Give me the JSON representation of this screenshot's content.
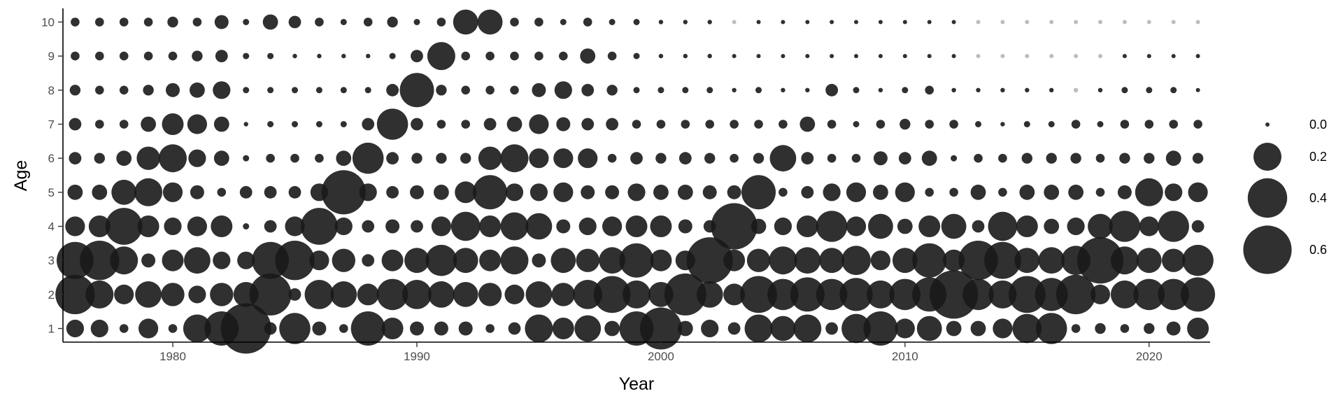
{
  "chart_data": {
    "type": "scatter",
    "subtype": "bubble",
    "title": "",
    "xlabel": "Year",
    "ylabel": "Age",
    "xlim": [
      1975.5,
      2022.5
    ],
    "ylim": [
      0.6,
      10.4
    ],
    "x_ticks": [
      "1980",
      "1990",
      "2000",
      "2010",
      "2020"
    ],
    "y_ticks": [
      "1",
      "2",
      "3",
      "4",
      "5",
      "6",
      "7",
      "8",
      "9",
      "10"
    ],
    "years": [
      1976,
      1977,
      1978,
      1979,
      1980,
      1981,
      1982,
      1983,
      1984,
      1985,
      1986,
      1987,
      1988,
      1989,
      1990,
      1991,
      1992,
      1993,
      1994,
      1995,
      1996,
      1997,
      1998,
      1999,
      2000,
      2001,
      2002,
      2003,
      2004,
      2005,
      2006,
      2007,
      2008,
      2009,
      2010,
      2011,
      2012,
      2013,
      2014,
      2015,
      2016,
      2017,
      2018,
      2019,
      2020,
      2021,
      2022
    ],
    "ages": [
      1,
      2,
      3,
      4,
      5,
      6,
      7,
      8,
      9,
      10
    ],
    "values_by_age": {
      "1": [
        0.08,
        0.08,
        0.02,
        0.1,
        0.02,
        0.2,
        0.3,
        0.65,
        0.04,
        0.25,
        0.05,
        0.02,
        0.3,
        0.12,
        0.05,
        0.05,
        0.05,
        0.02,
        0.04,
        0.2,
        0.12,
        0.18,
        0.06,
        0.3,
        0.45,
        0.06,
        0.08,
        0.04,
        0.2,
        0.16,
        0.2,
        0.04,
        0.22,
        0.3,
        0.1,
        0.16,
        0.06,
        0.06,
        0.1,
        0.22,
        0.25,
        0.02,
        0.03,
        0.02,
        0.03,
        0.05,
        0.12
      ],
      "2": [
        0.4,
        0.2,
        0.1,
        0.18,
        0.14,
        0.08,
        0.14,
        0.16,
        0.45,
        0.04,
        0.22,
        0.18,
        0.12,
        0.25,
        0.22,
        0.18,
        0.16,
        0.14,
        0.1,
        0.18,
        0.14,
        0.22,
        0.35,
        0.2,
        0.16,
        0.45,
        0.18,
        0.12,
        0.35,
        0.25,
        0.3,
        0.25,
        0.28,
        0.2,
        0.25,
        0.3,
        0.6,
        0.25,
        0.2,
        0.35,
        0.28,
        0.4,
        0.1,
        0.2,
        0.25,
        0.25,
        0.3
      ],
      "3": [
        0.35,
        0.4,
        0.2,
        0.05,
        0.12,
        0.18,
        0.08,
        0.08,
        0.35,
        0.4,
        0.1,
        0.14,
        0.04,
        0.12,
        0.16,
        0.25,
        0.16,
        0.12,
        0.2,
        0.05,
        0.16,
        0.14,
        0.18,
        0.3,
        0.12,
        0.1,
        0.55,
        0.12,
        0.14,
        0.2,
        0.18,
        0.16,
        0.22,
        0.1,
        0.16,
        0.3,
        0.12,
        0.4,
        0.35,
        0.16,
        0.18,
        0.22,
        0.55,
        0.2,
        0.16,
        0.14,
        0.25
      ],
      "4": [
        0.1,
        0.12,
        0.35,
        0.12,
        0.08,
        0.1,
        0.12,
        0.01,
        0.04,
        0.1,
        0.35,
        0.08,
        0.04,
        0.05,
        0.04,
        0.1,
        0.22,
        0.12,
        0.2,
        0.18,
        0.05,
        0.08,
        0.1,
        0.12,
        0.12,
        0.05,
        0.04,
        0.55,
        0.06,
        0.08,
        0.12,
        0.25,
        0.1,
        0.16,
        0.06,
        0.12,
        0.16,
        0.04,
        0.22,
        0.12,
        0.06,
        0.08,
        0.16,
        0.25,
        0.1,
        0.25,
        0.04
      ],
      "5": [
        0.06,
        0.06,
        0.16,
        0.2,
        0.1,
        0.05,
        0.02,
        0.04,
        0.04,
        0.04,
        0.08,
        0.5,
        0.08,
        0.04,
        0.05,
        0.06,
        0.12,
        0.3,
        0.08,
        0.08,
        0.1,
        0.05,
        0.05,
        0.08,
        0.06,
        0.06,
        0.05,
        0.05,
        0.3,
        0.02,
        0.04,
        0.08,
        0.1,
        0.06,
        0.1,
        0.02,
        0.02,
        0.06,
        0.02,
        0.06,
        0.06,
        0.06,
        0.02,
        0.05,
        0.2,
        0.08,
        0.1
      ],
      "6": [
        0.04,
        0.03,
        0.06,
        0.14,
        0.2,
        0.08,
        0.06,
        0.01,
        0.02,
        0.02,
        0.02,
        0.06,
        0.25,
        0.04,
        0.03,
        0.03,
        0.03,
        0.14,
        0.2,
        0.1,
        0.1,
        0.1,
        0.02,
        0.04,
        0.03,
        0.04,
        0.03,
        0.02,
        0.03,
        0.18,
        0.04,
        0.02,
        0.02,
        0.05,
        0.04,
        0.06,
        0.01,
        0.02,
        0.02,
        0.03,
        0.03,
        0.03,
        0.02,
        0.03,
        0.03,
        0.06,
        0.03
      ],
      "7": [
        0.04,
        0.02,
        0.02,
        0.06,
        0.12,
        0.1,
        0.06,
        0.005,
        0.01,
        0.01,
        0.01,
        0.01,
        0.04,
        0.25,
        0.04,
        0.02,
        0.02,
        0.04,
        0.06,
        0.1,
        0.05,
        0.04,
        0.04,
        0.02,
        0.02,
        0.02,
        0.02,
        0.02,
        0.02,
        0.02,
        0.06,
        0.02,
        0.01,
        0.02,
        0.03,
        0.02,
        0.02,
        0.01,
        0.005,
        0.01,
        0.01,
        0.02,
        0.01,
        0.02,
        0.02,
        0.02,
        0.02
      ],
      "8": [
        0.03,
        0.02,
        0.02,
        0.03,
        0.05,
        0.06,
        0.08,
        0.01,
        0.01,
        0.01,
        0.01,
        0.01,
        0.01,
        0.04,
        0.3,
        0.03,
        0.02,
        0.02,
        0.02,
        0.05,
        0.08,
        0.04,
        0.03,
        0.01,
        0.01,
        0.01,
        0.01,
        0.005,
        0.01,
        0.005,
        0.005,
        0.04,
        0.01,
        0.005,
        0.01,
        0.02,
        0.005,
        0.005,
        0.005,
        0.005,
        0.005,
        0.005,
        0.005,
        0.01,
        0.01,
        0.01,
        0.003
      ],
      "9": [
        0.02,
        0.02,
        0.02,
        0.02,
        0.02,
        0.03,
        0.04,
        0.01,
        0.01,
        0.005,
        0.005,
        0.005,
        0.005,
        0.01,
        0.04,
        0.2,
        0.02,
        0.02,
        0.02,
        0.02,
        0.02,
        0.06,
        0.02,
        0.01,
        0.005,
        0.005,
        0.005,
        0.003,
        0.003,
        0.003,
        0.003,
        0.003,
        0.003,
        0.003,
        0.003,
        0.003,
        0.003,
        0.002,
        0.002,
        0.002,
        0.002,
        0.002,
        0.002,
        0.003,
        0.003,
        0.003,
        0.003
      ],
      "10": [
        0.02,
        0.02,
        0.02,
        0.02,
        0.03,
        0.02,
        0.05,
        0.01,
        0.06,
        0.04,
        0.02,
        0.01,
        0.02,
        0.03,
        0.01,
        0.02,
        0.16,
        0.16,
        0.02,
        0.02,
        0.01,
        0.02,
        0.01,
        0.01,
        0.005,
        0.005,
        0.005,
        0.002,
        0.003,
        0.003,
        0.003,
        0.003,
        0.003,
        0.003,
        0.003,
        0.003,
        0.003,
        0.002,
        0.002,
        0.002,
        0.002,
        0.002,
        0.002,
        0.002,
        0.002,
        0.002,
        0.002
      ]
    },
    "grey_points": [
      [
        2003,
        10
      ],
      [
        2013,
        10
      ],
      [
        2014,
        10
      ],
      [
        2015,
        10
      ],
      [
        2016,
        10
      ],
      [
        2017,
        10
      ],
      [
        2018,
        10
      ],
      [
        2019,
        10
      ],
      [
        2020,
        10
      ],
      [
        2021,
        10
      ],
      [
        2022,
        10
      ],
      [
        2013,
        9
      ],
      [
        2014,
        9
      ],
      [
        2015,
        9
      ],
      [
        2016,
        9
      ],
      [
        2017,
        9
      ],
      [
        2018,
        9
      ],
      [
        2017,
        8
      ]
    ],
    "size_legend": {
      "values": [
        0.0,
        0.2,
        0.4,
        0.6
      ],
      "labels": [
        "0.0",
        "0.2",
        "0.4",
        "0.6"
      ],
      "placement": "right"
    },
    "grid": false,
    "colors": {
      "point": "#1a1a1a",
      "point_missing": "#bdbdbd",
      "axis": "#000000",
      "tick_text": "#4d4d4d"
    }
  }
}
